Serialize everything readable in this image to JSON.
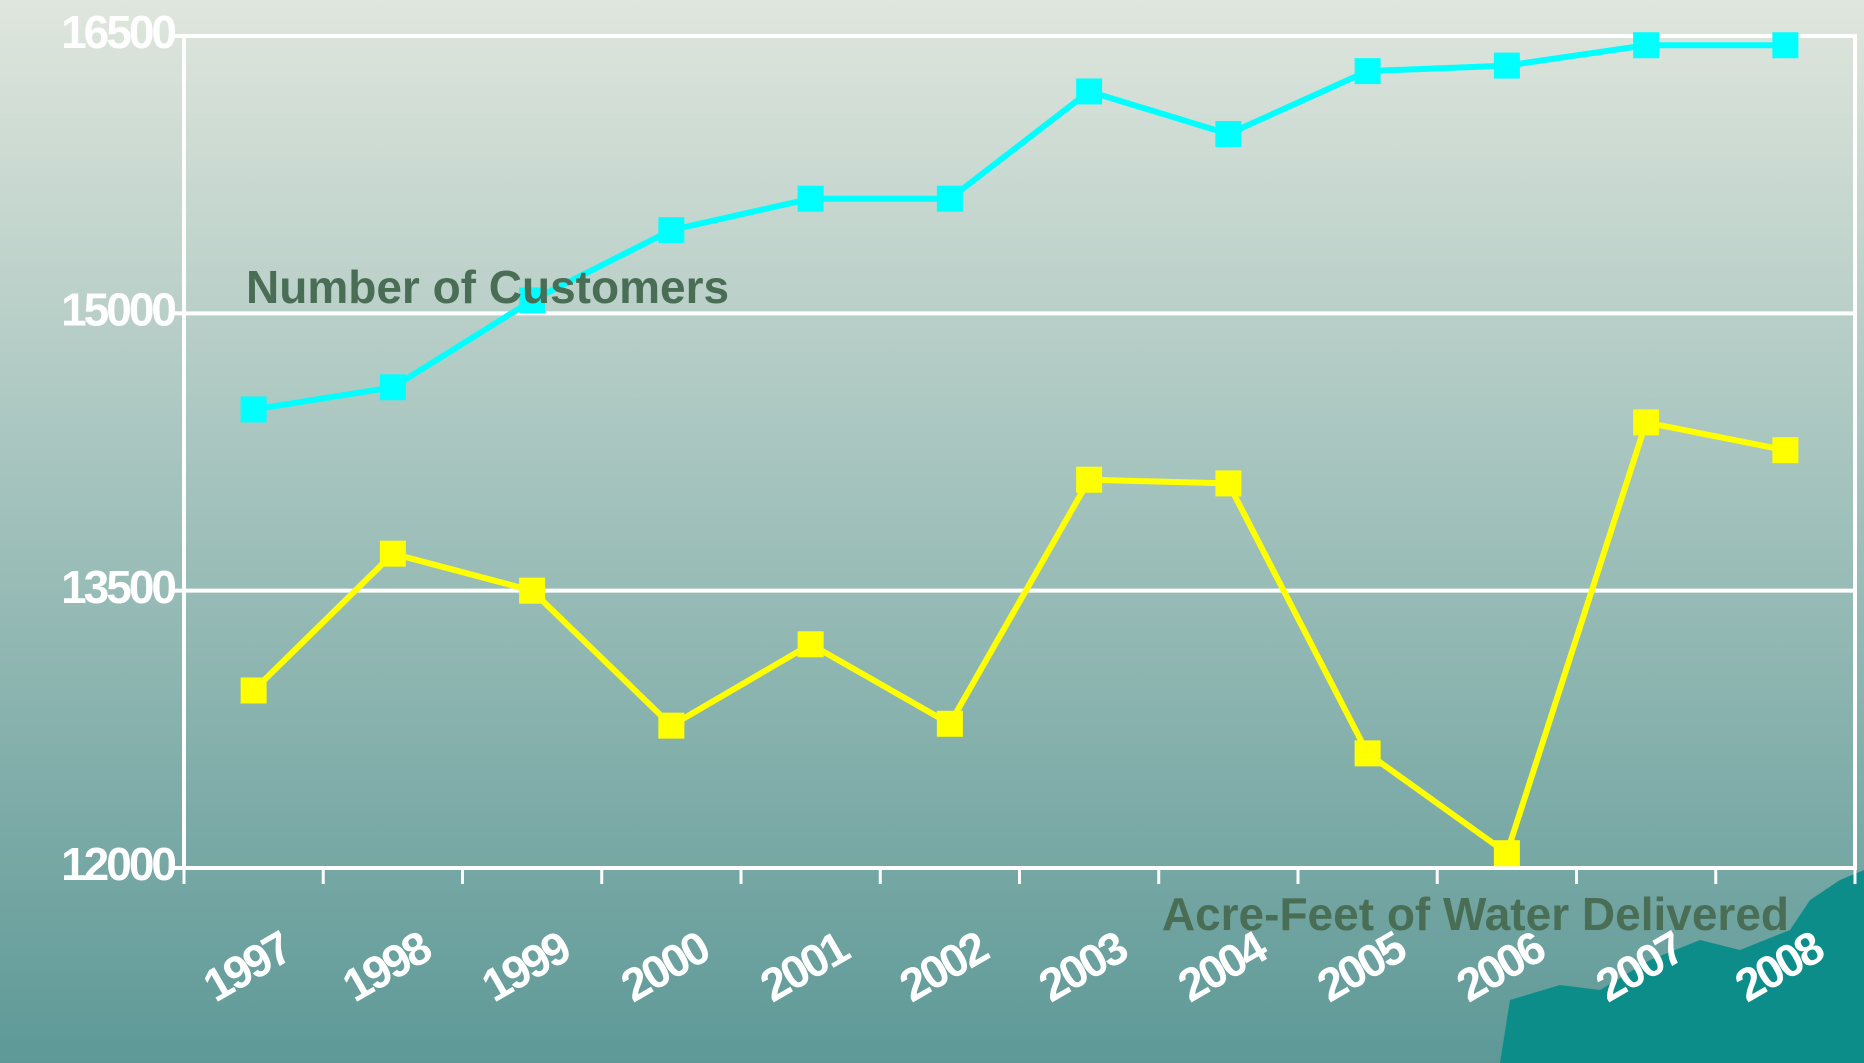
{
  "chart_data": {
    "type": "line",
    "categories": [
      "1997",
      "1998",
      "1999",
      "2000",
      "2001",
      "2002",
      "2003",
      "2004",
      "2005",
      "2006",
      "2007",
      "2008"
    ],
    "series": [
      {
        "name": "Number of Customers",
        "color": "#00ffff",
        "values": [
          14480,
          14600,
          15070,
          15450,
          15620,
          15620,
          16200,
          15970,
          16310,
          16340,
          16450,
          16450
        ]
      },
      {
        "name": "Acre-Feet of Water Delivered",
        "color": "#ffff00",
        "values": [
          12960,
          13700,
          13500,
          12770,
          13210,
          12780,
          14100,
          14080,
          12620,
          12080,
          14410,
          14260
        ]
      }
    ],
    "ylim": [
      12000,
      16500
    ],
    "yticks": [
      12000,
      13500,
      15000,
      16500
    ],
    "grid": true
  }
}
